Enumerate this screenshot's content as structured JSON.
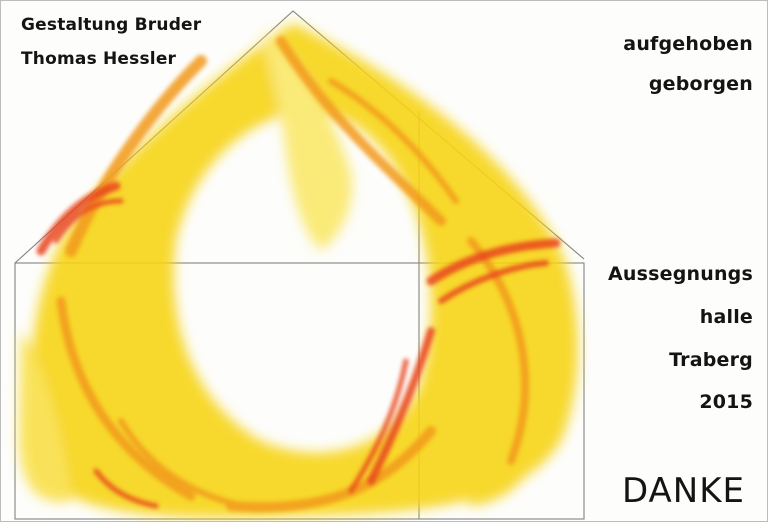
{
  "credit": {
    "line1": "Gestaltung Bruder",
    "line2": "Thomas Hessler"
  },
  "caption": {
    "line1": "aufgehoben",
    "line2": "geborgen"
  },
  "place": {
    "line1": "Aussegnungs",
    "line2": "halle",
    "line3": "Traberg",
    "year": "2015"
  },
  "thanks": "DANKE",
  "colors": {
    "yellow": "#f7d417",
    "light_yellow": "#fae86a",
    "orange": "#f29a1e",
    "red": "#e8451c",
    "ink": "#141414",
    "pencil": "#5a5a5a"
  }
}
